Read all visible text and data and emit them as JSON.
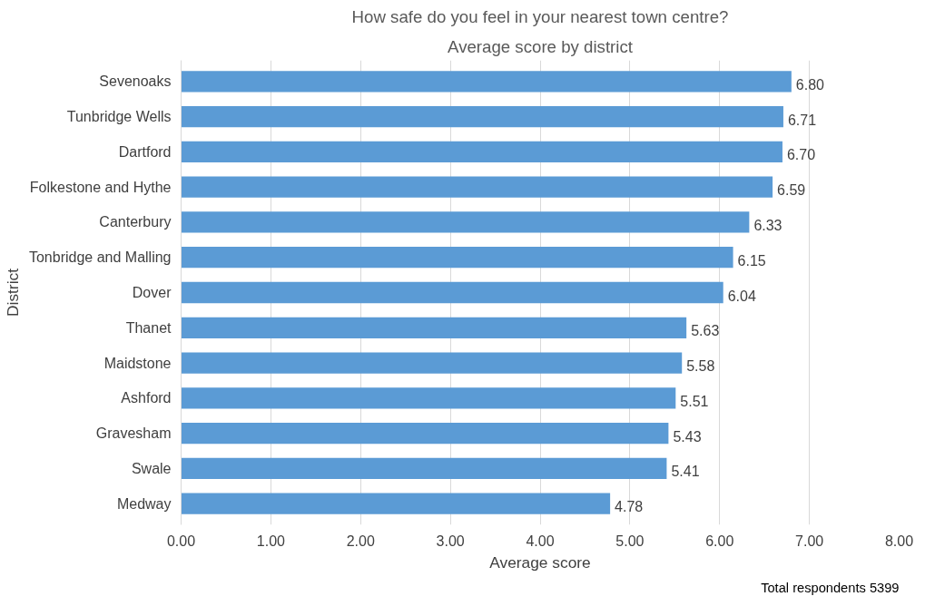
{
  "chart_data": {
    "type": "bar",
    "orientation": "horizontal",
    "title": "How safe do you feel in your nearest town centre?",
    "subtitle": "Average score by district",
    "xlabel": "Average score",
    "ylabel": "District",
    "categories": [
      "Sevenoaks",
      "Tunbridge Wells",
      "Dartford",
      "Folkestone and Hythe",
      "Canterbury",
      "Tonbridge and Malling",
      "Dover",
      "Thanet",
      "Maidstone",
      "Ashford",
      "Gravesham",
      "Swale",
      "Medway"
    ],
    "values": [
      6.8,
      6.71,
      6.7,
      6.59,
      6.33,
      6.15,
      6.04,
      5.63,
      5.58,
      5.51,
      5.43,
      5.41,
      4.78
    ],
    "value_labels": [
      "6.80",
      "6.71",
      "6.70",
      "6.59",
      "6.33",
      "6.15",
      "6.04",
      "5.63",
      "5.58",
      "5.51",
      "5.43",
      "5.41",
      "4.78"
    ],
    "color": "#5b9bd5",
    "xlim": [
      0,
      8
    ],
    "xticks": [
      {
        "value": 0,
        "label": "0.00"
      },
      {
        "value": 1,
        "label": "1.00"
      },
      {
        "value": 2,
        "label": "2.00"
      },
      {
        "value": 3,
        "label": "3.00"
      },
      {
        "value": 4,
        "label": "4.00"
      },
      {
        "value": 5,
        "label": "5.00"
      },
      {
        "value": 6,
        "label": "6.00"
      },
      {
        "value": 7,
        "label": "7.00"
      },
      {
        "value": 8,
        "label": "8.00"
      }
    ],
    "grid": "x",
    "annotations": [
      "Total respondents 5399"
    ]
  }
}
